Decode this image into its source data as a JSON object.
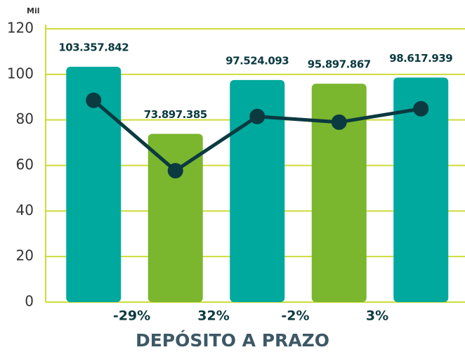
{
  "chart_data": {
    "type": "bar",
    "title": "DEPÓSITO A PRAZO",
    "y_unit": "Mil",
    "categories": [
      null,
      null,
      null,
      null,
      null
    ],
    "series": [
      {
        "colors": [
          "#00a99d",
          "#7ab62e",
          "#00a99d",
          "#7ab62e",
          "#00a99d"
        ],
        "values": [
          103.357842,
          73.897385,
          97.524093,
          95.897867,
          98.617939
        ],
        "value_labels": [
          "103.357.842",
          "73.897.385",
          "97.524.093",
          "95.897.867",
          "98.617.939"
        ]
      }
    ],
    "line": {
      "type": "line",
      "color": "#0b3a40",
      "values": [
        88.6,
        57.7,
        81.5,
        79,
        84.9
      ]
    },
    "changes": {
      "values": [
        -29,
        32,
        -2,
        3
      ],
      "value_labels": [
        "-29%",
        "32%",
        "-2%",
        "3%"
      ]
    },
    "ylim": [
      0,
      120
    ],
    "yticks": [
      0,
      20,
      40,
      60,
      80,
      100,
      120
    ],
    "grid": true,
    "grid_color": "#cddc39"
  }
}
